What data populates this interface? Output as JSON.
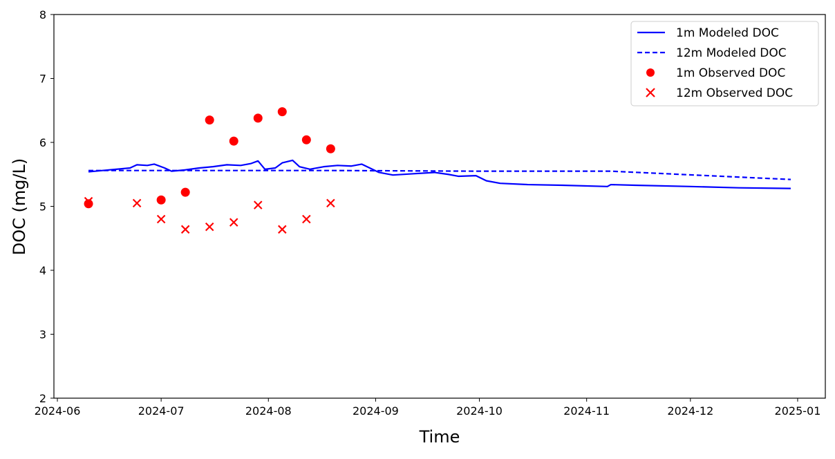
{
  "chart_data": {
    "type": "line",
    "xlabel": "Time",
    "ylabel": "DOC (mg/L)",
    "ylim": [
      2,
      8
    ],
    "xlim": [
      "2024-05-31",
      "2025-01-09"
    ],
    "x_ticks": [
      "2024-06",
      "2024-07",
      "2024-08",
      "2024-09",
      "2024-10",
      "2024-11",
      "2024-12",
      "2025-01"
    ],
    "y_ticks": [
      "2",
      "3",
      "4",
      "5",
      "6",
      "7",
      "8"
    ],
    "grid": false,
    "legend_position": "top-right",
    "series": [
      {
        "name": "1m Modeled DOC",
        "kind": "line",
        "style": "solid",
        "color": "#0000ff",
        "points": [
          [
            "2024-06-10",
            5.54
          ],
          [
            "2024-06-14",
            5.56
          ],
          [
            "2024-06-18",
            5.58
          ],
          [
            "2024-06-22",
            5.6
          ],
          [
            "2024-06-24",
            5.65
          ],
          [
            "2024-06-27",
            5.64
          ],
          [
            "2024-06-29",
            5.66
          ],
          [
            "2024-07-02",
            5.6
          ],
          [
            "2024-07-04",
            5.55
          ],
          [
            "2024-07-08",
            5.57
          ],
          [
            "2024-07-12",
            5.6
          ],
          [
            "2024-07-16",
            5.62
          ],
          [
            "2024-07-20",
            5.65
          ],
          [
            "2024-07-24",
            5.64
          ],
          [
            "2024-07-27",
            5.67
          ],
          [
            "2024-07-29",
            5.71
          ],
          [
            "2024-07-31",
            5.58
          ],
          [
            "2024-08-03",
            5.6
          ],
          [
            "2024-08-05",
            5.68
          ],
          [
            "2024-08-08",
            5.72
          ],
          [
            "2024-08-10",
            5.62
          ],
          [
            "2024-08-13",
            5.58
          ],
          [
            "2024-08-17",
            5.62
          ],
          [
            "2024-08-21",
            5.64
          ],
          [
            "2024-08-25",
            5.63
          ],
          [
            "2024-08-28",
            5.66
          ],
          [
            "2024-09-02",
            5.53
          ],
          [
            "2024-09-06",
            5.49
          ],
          [
            "2024-09-12",
            5.51
          ],
          [
            "2024-09-18",
            5.53
          ],
          [
            "2024-09-22",
            5.5
          ],
          [
            "2024-09-25",
            5.47
          ],
          [
            "2024-09-30",
            5.48
          ],
          [
            "2024-10-03",
            5.4
          ],
          [
            "2024-10-07",
            5.36
          ],
          [
            "2024-10-15",
            5.34
          ],
          [
            "2024-10-25",
            5.33
          ],
          [
            "2024-11-07",
            5.31
          ],
          [
            "2024-11-08",
            5.34
          ],
          [
            "2024-11-15",
            5.33
          ],
          [
            "2024-12-01",
            5.31
          ],
          [
            "2024-12-15",
            5.29
          ],
          [
            "2024-12-30",
            5.28
          ]
        ]
      },
      {
        "name": "12m Modeled DOC",
        "kind": "line",
        "style": "dashed",
        "color": "#0000ff",
        "points": [
          [
            "2024-06-10",
            5.56
          ],
          [
            "2024-07-15",
            5.56
          ],
          [
            "2024-08-20",
            5.56
          ],
          [
            "2024-09-30",
            5.55
          ],
          [
            "2024-11-08",
            5.55
          ],
          [
            "2024-12-30",
            5.42
          ]
        ]
      },
      {
        "name": "1m Observed DOC",
        "kind": "scatter",
        "marker": "circle",
        "color": "#ff0000",
        "points": [
          [
            "2024-06-10",
            5.04
          ],
          [
            "2024-07-01",
            5.1
          ],
          [
            "2024-07-08",
            5.22
          ],
          [
            "2024-07-15",
            6.35
          ],
          [
            "2024-07-22",
            6.02
          ],
          [
            "2024-07-29",
            6.38
          ],
          [
            "2024-08-05",
            6.48
          ],
          [
            "2024-08-12",
            6.04
          ],
          [
            "2024-08-19",
            5.9
          ]
        ]
      },
      {
        "name": "12m Observed DOC",
        "kind": "scatter",
        "marker": "x",
        "color": "#ff0000",
        "points": [
          [
            "2024-06-10",
            5.08
          ],
          [
            "2024-06-24",
            5.05
          ],
          [
            "2024-07-01",
            4.8
          ],
          [
            "2024-07-08",
            4.64
          ],
          [
            "2024-07-15",
            4.68
          ],
          [
            "2024-07-22",
            4.75
          ],
          [
            "2024-07-29",
            5.02
          ],
          [
            "2024-08-05",
            4.64
          ],
          [
            "2024-08-12",
            4.8
          ],
          [
            "2024-08-19",
            5.05
          ]
        ]
      }
    ]
  }
}
